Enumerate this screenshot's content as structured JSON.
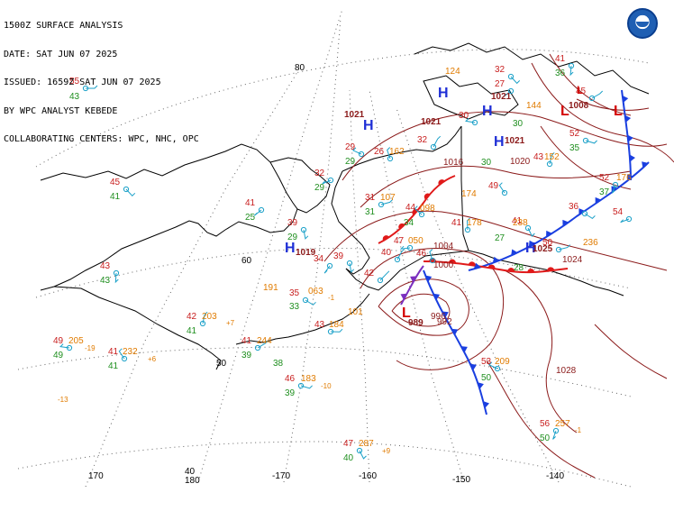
{
  "header": {
    "line1": "1500Z SURFACE ANALYSIS",
    "line2": "DATE: SAT JUN 07 2025",
    "line3": "ISSUED: 1659Z SAT JUN 07 2025",
    "line4": "BY WPC ANALYST KEBEDE",
    "line5": "COLLABORATING CENTERS: WPC, NHC, OPC"
  },
  "logo": {
    "icon": "noaa-logo-icon"
  },
  "graticule_labels": {
    "lat": [
      "80",
      "60",
      "50",
      "40"
    ],
    "lon": [
      "170",
      "180",
      "-170",
      "-160",
      "-150",
      "-140"
    ]
  },
  "pressure_centers": [
    {
      "type": "H",
      "value": "1021"
    },
    {
      "type": "H",
      "value": "1021"
    },
    {
      "type": "H",
      "value": "1021"
    },
    {
      "type": "H",
      "value": "1019"
    },
    {
      "type": "H",
      "value": "1025"
    },
    {
      "type": "H",
      "value": "1021"
    },
    {
      "type": "L",
      "value": "989"
    },
    {
      "type": "L",
      "value": "1008"
    },
    {
      "type": "L",
      "value": ""
    },
    {
      "type": "L",
      "value": ""
    }
  ],
  "isobar_labels": [
    "1016",
    "1020",
    "1024",
    "1028",
    "996",
    "992",
    "1000",
    "1004"
  ],
  "station_labels": {
    "temps": [
      "55",
      "45",
      "43",
      "41",
      "49",
      "41",
      "42",
      "41",
      "46",
      "47",
      "56",
      "32",
      "29",
      "26",
      "32",
      "31",
      "35",
      "39",
      "34",
      "47",
      "44",
      "41",
      "42",
      "43",
      "32",
      "41",
      "27",
      "30",
      "49",
      "43",
      "45",
      "52",
      "41",
      "52",
      "54",
      "53",
      "46",
      "40",
      "50",
      "36",
      "39"
    ],
    "dewpoints": [
      "43",
      "41",
      "25",
      "43",
      "49",
      "41",
      "41",
      "39",
      "38",
      "33",
      "39",
      "40",
      "50",
      "29",
      "29",
      "31",
      "29",
      "30",
      "36",
      "37",
      "34",
      "27",
      "28",
      "50",
      "35",
      "30"
    ],
    "pressures": [
      "205",
      "232",
      "203",
      "244",
      "183",
      "287",
      "257",
      "191",
      "162",
      "174",
      "178",
      "238",
      "236",
      "107",
      "098",
      "063",
      "209",
      "184",
      "152",
      "144",
      "176",
      "101",
      "050",
      "124"
    ],
    "tendencies": [
      "-19",
      "+6",
      "+7",
      "-10",
      "+9",
      "-1",
      "-13",
      "-1"
    ]
  },
  "colors": {
    "temp": "#c81e1e",
    "dewpoint": "#1f8f1f",
    "pressure": "#e07b00",
    "isobar": "#8b1a1a",
    "high": "#1f2fd6",
    "low": "#d40000",
    "cold_front": "#1a3fe0",
    "warm_front": "#e01a1a",
    "occluded": "#7b2fbf",
    "station": "#1aa0c8",
    "coast": "#000000",
    "grid": "#555555"
  }
}
